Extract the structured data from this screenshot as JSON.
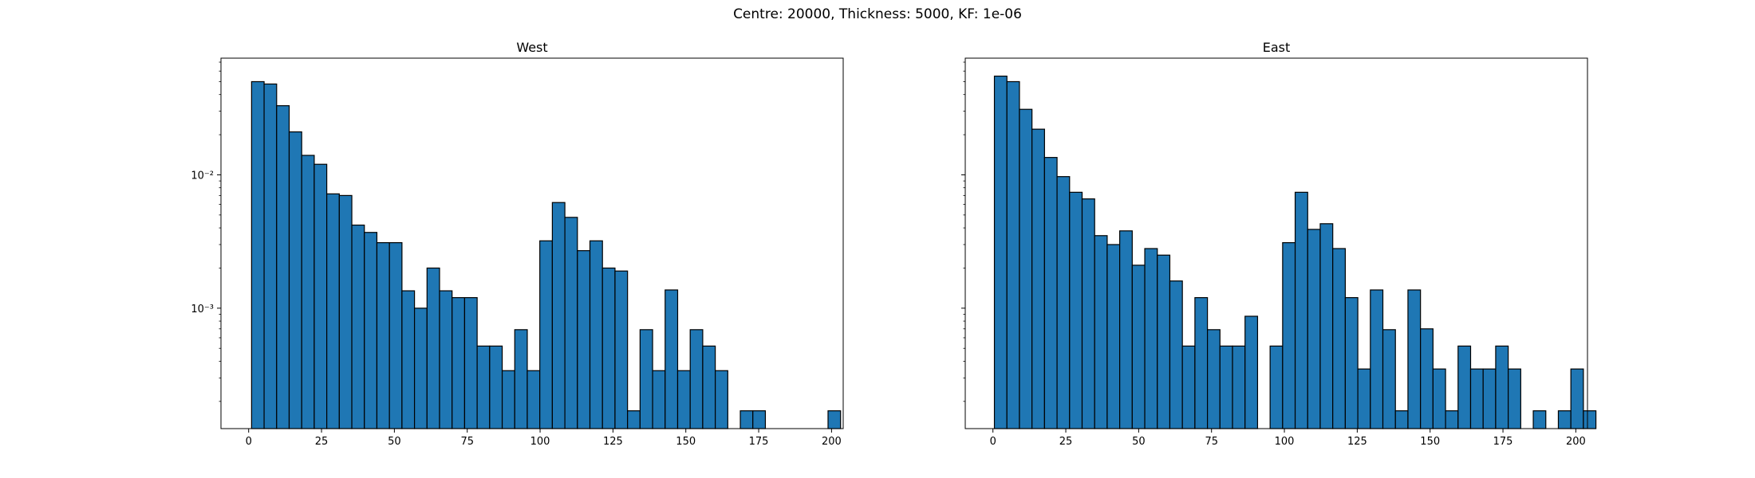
{
  "figure": {
    "suptitle": "Centre: 20000, Thickness: 5000, KF: 1e-06"
  },
  "chart_data": [
    {
      "type": "bar",
      "title": "West",
      "xlabel": "",
      "ylabel": "",
      "yscale": "log",
      "xlim": [
        -9.5,
        204
      ],
      "ylim": [
        0.000125,
        0.075
      ],
      "xticks": [
        0,
        25,
        50,
        75,
        100,
        125,
        150,
        175,
        200
      ],
      "yticks": [
        0.01,
        0.001
      ],
      "ytick_labels": [
        "10⁻²",
        "10⁻³"
      ],
      "bin_width": 4.3,
      "bar_color": "#1f77b4",
      "edge_color": "#000000",
      "bins": [
        {
          "x": 1,
          "y": 0.05
        },
        {
          "x": 5.3,
          "y": 0.048
        },
        {
          "x": 9.6,
          "y": 0.033
        },
        {
          "x": 13.9,
          "y": 0.021
        },
        {
          "x": 18.2,
          "y": 0.014
        },
        {
          "x": 22.5,
          "y": 0.012
        },
        {
          "x": 26.8,
          "y": 0.0072
        },
        {
          "x": 31.1,
          "y": 0.007
        },
        {
          "x": 35.4,
          "y": 0.0042
        },
        {
          "x": 39.7,
          "y": 0.0037
        },
        {
          "x": 44,
          "y": 0.0031
        },
        {
          "x": 48.3,
          "y": 0.0031
        },
        {
          "x": 52.6,
          "y": 0.00135
        },
        {
          "x": 56.9,
          "y": 0.001
        },
        {
          "x": 61.2,
          "y": 0.002
        },
        {
          "x": 65.5,
          "y": 0.00135
        },
        {
          "x": 69.8,
          "y": 0.0012
        },
        {
          "x": 74.1,
          "y": 0.0012
        },
        {
          "x": 78.4,
          "y": 0.00052
        },
        {
          "x": 82.7,
          "y": 0.00052
        },
        {
          "x": 87,
          "y": 0.00034
        },
        {
          "x": 91.3,
          "y": 0.00069
        },
        {
          "x": 95.6,
          "y": 0.00034
        },
        {
          "x": 99.9,
          "y": 0.0032
        },
        {
          "x": 104.2,
          "y": 0.0062
        },
        {
          "x": 108.5,
          "y": 0.0048
        },
        {
          "x": 112.8,
          "y": 0.0027
        },
        {
          "x": 117.1,
          "y": 0.0032
        },
        {
          "x": 121.4,
          "y": 0.002
        },
        {
          "x": 125.7,
          "y": 0.0019
        },
        {
          "x": 130,
          "y": 0.00017
        },
        {
          "x": 134.3,
          "y": 0.00069
        },
        {
          "x": 138.6,
          "y": 0.00034
        },
        {
          "x": 142.9,
          "y": 0.00137
        },
        {
          "x": 147.2,
          "y": 0.00034
        },
        {
          "x": 151.5,
          "y": 0.00069
        },
        {
          "x": 155.8,
          "y": 0.00052
        },
        {
          "x": 160.1,
          "y": 0.00034
        },
        {
          "x": 164.4,
          "y": 0
        },
        {
          "x": 168.7,
          "y": 0.00017
        },
        {
          "x": 173,
          "y": 0.00017
        },
        {
          "x": 177.3,
          "y": 0
        },
        {
          "x": 181.6,
          "y": 0
        },
        {
          "x": 185.9,
          "y": 0
        },
        {
          "x": 190.2,
          "y": 0
        },
        {
          "x": 194.5,
          "y": 0
        },
        {
          "x": 198.8,
          "y": 0.00017
        }
      ]
    },
    {
      "type": "bar",
      "title": "East",
      "xlabel": "",
      "ylabel": "",
      "yscale": "log",
      "xlim": [
        -9.5,
        204
      ],
      "ylim": [
        0.000125,
        0.075
      ],
      "xticks": [
        0,
        25,
        50,
        75,
        100,
        125,
        150,
        175,
        200
      ],
      "yticks": [
        0.01,
        0.001
      ],
      "ytick_labels": [
        "",
        ""
      ],
      "bin_width": 4.3,
      "bar_color": "#1f77b4",
      "edge_color": "#000000",
      "bins": [
        {
          "x": 0.5,
          "y": 0.055
        },
        {
          "x": 4.8,
          "y": 0.05
        },
        {
          "x": 9.1,
          "y": 0.031
        },
        {
          "x": 13.4,
          "y": 0.022
        },
        {
          "x": 17.7,
          "y": 0.0135
        },
        {
          "x": 22,
          "y": 0.0097
        },
        {
          "x": 26.3,
          "y": 0.0074
        },
        {
          "x": 30.6,
          "y": 0.0066
        },
        {
          "x": 34.9,
          "y": 0.0035
        },
        {
          "x": 39.2,
          "y": 0.003
        },
        {
          "x": 43.5,
          "y": 0.0038
        },
        {
          "x": 47.8,
          "y": 0.0021
        },
        {
          "x": 52.1,
          "y": 0.0028
        },
        {
          "x": 56.4,
          "y": 0.0025
        },
        {
          "x": 60.7,
          "y": 0.0016
        },
        {
          "x": 65,
          "y": 0.00052
        },
        {
          "x": 69.3,
          "y": 0.0012
        },
        {
          "x": 73.6,
          "y": 0.00069
        },
        {
          "x": 77.9,
          "y": 0.00052
        },
        {
          "x": 82.2,
          "y": 0.00052
        },
        {
          "x": 86.5,
          "y": 0.00087
        },
        {
          "x": 90.8,
          "y": 0
        },
        {
          "x": 95.1,
          "y": 0.00052
        },
        {
          "x": 99.4,
          "y": 0.0031
        },
        {
          "x": 103.7,
          "y": 0.0074
        },
        {
          "x": 108,
          "y": 0.0039
        },
        {
          "x": 112.3,
          "y": 0.0043
        },
        {
          "x": 116.6,
          "y": 0.0028
        },
        {
          "x": 120.9,
          "y": 0.0012
        },
        {
          "x": 125.2,
          "y": 0.00035
        },
        {
          "x": 129.5,
          "y": 0.00137
        },
        {
          "x": 133.8,
          "y": 0.00069
        },
        {
          "x": 138.1,
          "y": 0.00017
        },
        {
          "x": 142.4,
          "y": 0.00137
        },
        {
          "x": 146.7,
          "y": 0.0007
        },
        {
          "x": 151,
          "y": 0.00035
        },
        {
          "x": 155.3,
          "y": 0.00017
        },
        {
          "x": 159.6,
          "y": 0.00052
        },
        {
          "x": 163.9,
          "y": 0.00035
        },
        {
          "x": 168.2,
          "y": 0.00035
        },
        {
          "x": 172.5,
          "y": 0.00052
        },
        {
          "x": 176.8,
          "y": 0.00035
        },
        {
          "x": 181.1,
          "y": 0
        },
        {
          "x": 185.4,
          "y": 0.00017
        },
        {
          "x": 189.7,
          "y": 0
        },
        {
          "x": 194,
          "y": 0.00017
        },
        {
          "x": 198.3,
          "y": 0.00035
        },
        {
          "x": 202.6,
          "y": 0.00017
        }
      ]
    }
  ]
}
